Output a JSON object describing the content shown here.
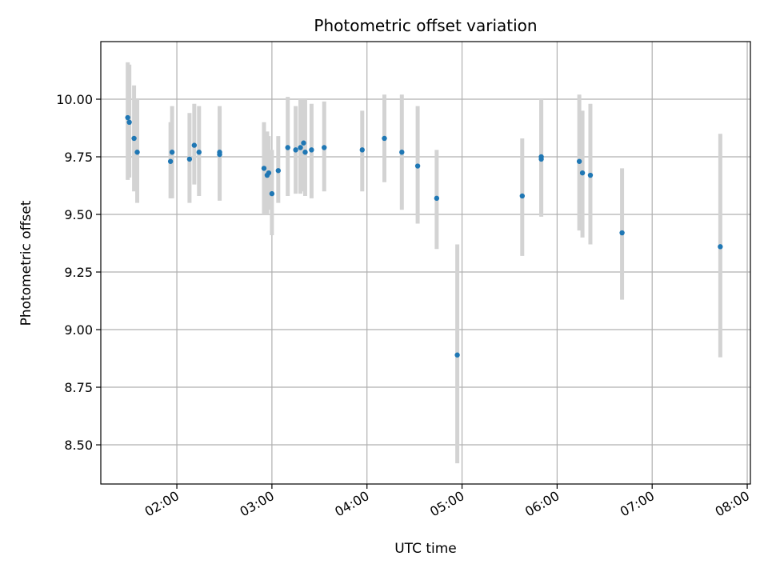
{
  "chart_data": {
    "type": "scatter",
    "title": "Photometric offset variation",
    "xlabel": "UTC time",
    "ylabel": "Photometric offset",
    "x_ticks": [
      "02:00",
      "03:00",
      "04:00",
      "05:00",
      "06:00",
      "07:00",
      "08:00"
    ],
    "y_ticks": [
      "8.50",
      "8.75",
      "9.00",
      "9.25",
      "9.50",
      "9.75",
      "10.00"
    ],
    "xlim": [
      "01:12",
      "08:02"
    ],
    "ylim": [
      8.33,
      10.25
    ],
    "grid": true,
    "colors": {
      "point": "#1f77b4",
      "errorbar": "#d3d3d3",
      "grid": "#b0b0b0"
    },
    "series": [
      {
        "points": [
          {
            "x": "01:29",
            "y": 9.92,
            "err_low": 9.65,
            "err_high": 10.16
          },
          {
            "x": "01:30",
            "y": 9.9,
            "err_low": 9.66,
            "err_high": 10.15
          },
          {
            "x": "01:33",
            "y": 9.83,
            "err_low": 9.6,
            "err_high": 10.06
          },
          {
            "x": "01:35",
            "y": 9.77,
            "err_low": 9.55,
            "err_high": 10.0
          },
          {
            "x": "01:56",
            "y": 9.73,
            "err_low": 9.57,
            "err_high": 9.9
          },
          {
            "x": "01:57",
            "y": 9.77,
            "err_low": 9.57,
            "err_high": 9.97
          },
          {
            "x": "02:08",
            "y": 9.74,
            "err_low": 9.55,
            "err_high": 9.94
          },
          {
            "x": "02:11",
            "y": 9.8,
            "err_low": 9.63,
            "err_high": 9.98
          },
          {
            "x": "02:14",
            "y": 9.77,
            "err_low": 9.58,
            "err_high": 9.97
          },
          {
            "x": "02:27",
            "y": 9.76,
            "err_low": 9.56,
            "err_high": 9.97
          },
          {
            "x": "02:27",
            "y": 9.77,
            "err_low": 9.56,
            "err_high": 9.96
          },
          {
            "x": "02:55",
            "y": 9.7,
            "err_low": 9.5,
            "err_high": 9.9
          },
          {
            "x": "02:57",
            "y": 9.67,
            "err_low": 9.5,
            "err_high": 9.86
          },
          {
            "x": "02:58",
            "y": 9.68,
            "err_low": 9.52,
            "err_high": 9.84
          },
          {
            "x": "03:00",
            "y": 9.59,
            "err_low": 9.41,
            "err_high": 9.78
          },
          {
            "x": "03:04",
            "y": 9.69,
            "err_low": 9.55,
            "err_high": 9.84
          },
          {
            "x": "03:10",
            "y": 9.79,
            "err_low": 9.58,
            "err_high": 10.01
          },
          {
            "x": "03:15",
            "y": 9.78,
            "err_low": 9.59,
            "err_high": 9.97
          },
          {
            "x": "03:18",
            "y": 9.79,
            "err_low": 9.59,
            "err_high": 10.0
          },
          {
            "x": "03:20",
            "y": 9.81,
            "err_low": 9.6,
            "err_high": 10.0
          },
          {
            "x": "03:21",
            "y": 9.77,
            "err_low": 9.58,
            "err_high": 10.0
          },
          {
            "x": "03:25",
            "y": 9.78,
            "err_low": 9.57,
            "err_high": 9.98
          },
          {
            "x": "03:33",
            "y": 9.79,
            "err_low": 9.6,
            "err_high": 9.99
          },
          {
            "x": "03:57",
            "y": 9.78,
            "err_low": 9.6,
            "err_high": 9.95
          },
          {
            "x": "04:11",
            "y": 9.83,
            "err_low": 9.64,
            "err_high": 10.02
          },
          {
            "x": "04:22",
            "y": 9.77,
            "err_low": 9.52,
            "err_high": 10.02
          },
          {
            "x": "04:32",
            "y": 9.71,
            "err_low": 9.46,
            "err_high": 9.97
          },
          {
            "x": "04:44",
            "y": 9.57,
            "err_low": 9.35,
            "err_high": 9.78
          },
          {
            "x": "04:57",
            "y": 8.89,
            "err_low": 8.42,
            "err_high": 9.37
          },
          {
            "x": "05:38",
            "y": 9.58,
            "err_low": 9.32,
            "err_high": 9.83
          },
          {
            "x": "05:50",
            "y": 9.74,
            "err_low": 9.49,
            "err_high": 10.0
          },
          {
            "x": "05:50",
            "y": 9.75,
            "err_low": 9.5,
            "err_high": 9.99
          },
          {
            "x": "06:14",
            "y": 9.73,
            "err_low": 9.43,
            "err_high": 10.02
          },
          {
            "x": "06:16",
            "y": 9.68,
            "err_low": 9.4,
            "err_high": 9.95
          },
          {
            "x": "06:21",
            "y": 9.67,
            "err_low": 9.37,
            "err_high": 9.98
          },
          {
            "x": "06:41",
            "y": 9.42,
            "err_low": 9.13,
            "err_high": 9.7
          },
          {
            "x": "07:43",
            "y": 9.36,
            "err_low": 8.88,
            "err_high": 9.85
          }
        ]
      }
    ]
  }
}
